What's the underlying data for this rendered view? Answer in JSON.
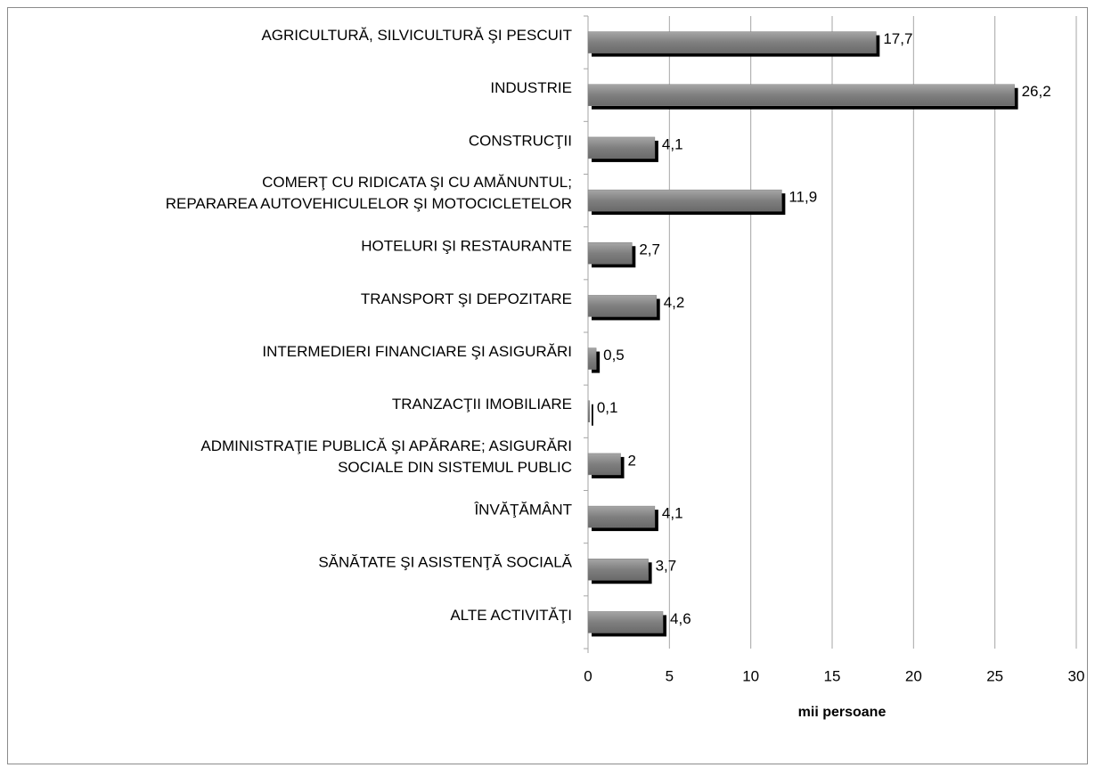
{
  "chart_data": {
    "type": "barh",
    "categories": [
      "AGRICULTURĂ, SILVICULTURĂ ŞI PESCUIT",
      "INDUSTRIE",
      "CONSTRUCŢII",
      "COMERŢ CU RIDICATA ŞI CU AMĂNUNTUL;\nREPARAREA AUTOVEHICULELOR ŞI MOTOCICLETELOR",
      "HOTELURI ŞI RESTAURANTE",
      "TRANSPORT ŞI DEPOZITARE",
      "INTERMEDIERI FINANCIARE ŞI ASIGURĂRI",
      "TRANZACŢII IMOBILIARE",
      "ADMINISTRAŢIE PUBLICĂ ŞI APĂRARE; ASIGURĂRI\nSOCIALE DIN SISTEMUL PUBLIC",
      "ÎNVĂŢĂMÂNT",
      "SĂNĂTATE ŞI ASISTENŢĂ  SOCIALĂ",
      "ALTE ACTIVITĂŢI"
    ],
    "values": [
      17.7,
      26.2,
      4.1,
      11.9,
      2.7,
      4.2,
      0.5,
      0.1,
      2,
      4.1,
      3.7,
      4.6
    ],
    "value_labels": [
      "17,7",
      "26,2",
      "4,1",
      "11,9",
      "2,7",
      "4,2",
      "0,5",
      "0,1",
      "2",
      "4,1",
      "3,7",
      "4,6"
    ],
    "color": "#7f7f7f",
    "xlabel": "mii persoane",
    "xlim": [
      0,
      30
    ],
    "xticks": [
      0,
      5,
      10,
      15,
      20,
      25,
      30
    ],
    "grid": true
  }
}
